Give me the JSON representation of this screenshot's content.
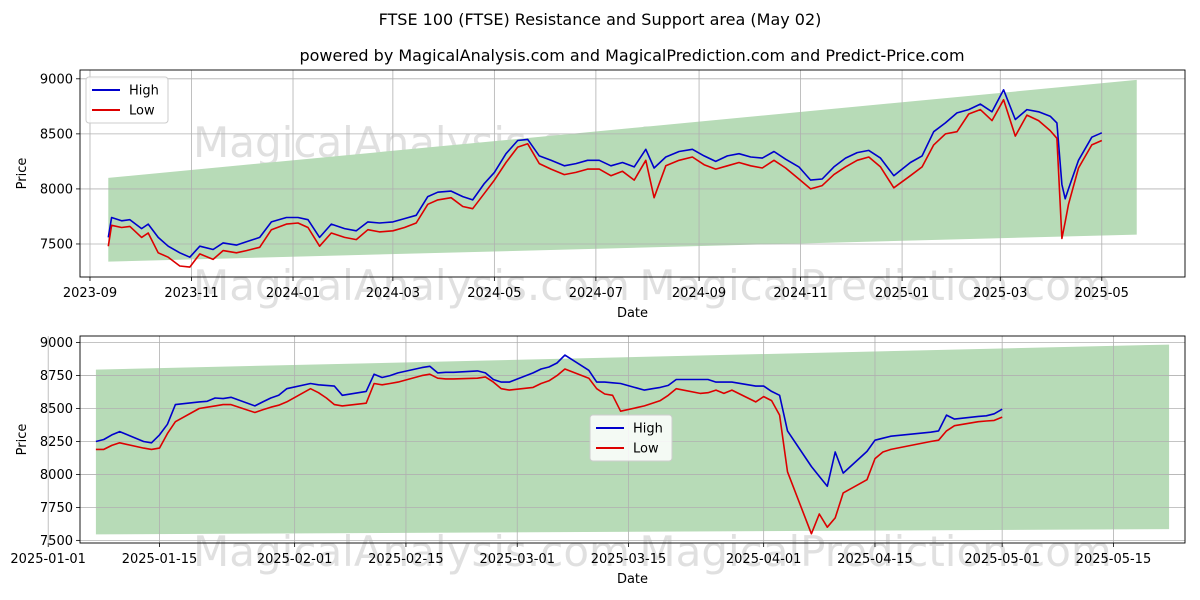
{
  "title": "FTSE 100 (FTSE) Resistance and Support area (May 02)",
  "subtitle": "powered by MagicalAnalysis.com and MagicalPrediction.com and Predict-Price.com",
  "watermarks": [
    "MagicalAnalysis.com",
    "MagicalPrediction.com"
  ],
  "colors": {
    "high": "#0000cc",
    "low": "#dd0000",
    "band": "#b7dbb7",
    "grid": "#b0b0b0"
  },
  "chart_data": [
    {
      "type": "line",
      "xlabel": "Date",
      "ylabel": "Price",
      "xlim": [
        "2023-08-26",
        "2025-06-20"
      ],
      "ylim": [
        7200,
        9080
      ],
      "grid": true,
      "legend": "top-left",
      "x_ticks": [
        "2023-09",
        "2023-11",
        "2024-01",
        "2024-03",
        "2024-05",
        "2024-07",
        "2024-09",
        "2024-11",
        "2025-01",
        "2025-03",
        "2025-05"
      ],
      "y_ticks": [
        7500,
        8000,
        8500,
        9000
      ],
      "band": {
        "x": [
          "2023-09-12",
          "2025-05-22"
        ],
        "upper": [
          8100,
          8990
        ],
        "lower": [
          7340,
          7585
        ]
      },
      "series": [
        {
          "name": "High",
          "x": [
            "2023-09-12",
            "2023-09-14",
            "2023-09-20",
            "2023-09-25",
            "2023-10-02",
            "2023-10-06",
            "2023-10-12",
            "2023-10-18",
            "2023-10-25",
            "2023-10-31",
            "2023-11-06",
            "2023-11-14",
            "2023-11-20",
            "2023-11-28",
            "2023-12-04",
            "2023-12-12",
            "2023-12-19",
            "2023-12-28",
            "2024-01-04",
            "2024-01-10",
            "2024-01-17",
            "2024-01-24",
            "2024-02-01",
            "2024-02-08",
            "2024-02-15",
            "2024-02-22",
            "2024-03-01",
            "2024-03-08",
            "2024-03-15",
            "2024-03-22",
            "2024-03-28",
            "2024-04-05",
            "2024-04-12",
            "2024-04-18",
            "2024-04-25",
            "2024-05-01",
            "2024-05-08",
            "2024-05-15",
            "2024-05-21",
            "2024-05-28",
            "2024-06-04",
            "2024-06-12",
            "2024-06-19",
            "2024-06-26",
            "2024-07-03",
            "2024-07-10",
            "2024-07-17",
            "2024-07-24",
            "2024-07-31",
            "2024-08-05",
            "2024-08-12",
            "2024-08-20",
            "2024-08-28",
            "2024-09-04",
            "2024-09-11",
            "2024-09-18",
            "2024-09-25",
            "2024-10-02",
            "2024-10-09",
            "2024-10-16",
            "2024-10-23",
            "2024-10-31",
            "2024-11-07",
            "2024-11-14",
            "2024-11-21",
            "2024-11-28",
            "2024-12-05",
            "2024-12-12",
            "2024-12-19",
            "2024-12-27",
            "2025-01-06",
            "2025-01-13",
            "2025-01-20",
            "2025-01-27",
            "2025-02-03",
            "2025-02-10",
            "2025-02-17",
            "2025-02-24",
            "2025-03-03",
            "2025-03-10",
            "2025-03-17",
            "2025-03-24",
            "2025-03-31",
            "2025-04-04",
            "2025-04-07",
            "2025-04-09",
            "2025-04-11",
            "2025-04-17",
            "2025-04-25",
            "2025-05-01"
          ],
          "values": [
            7560,
            7740,
            7710,
            7720,
            7640,
            7680,
            7560,
            7480,
            7420,
            7380,
            7480,
            7450,
            7510,
            7490,
            7520,
            7560,
            7700,
            7740,
            7740,
            7720,
            7560,
            7680,
            7640,
            7620,
            7700,
            7690,
            7700,
            7730,
            7760,
            7930,
            7970,
            7980,
            7930,
            7900,
            8050,
            8150,
            8320,
            8440,
            8450,
            8300,
            8260,
            8210,
            8230,
            8260,
            8260,
            8210,
            8240,
            8200,
            8360,
            8190,
            8290,
            8340,
            8360,
            8300,
            8250,
            8300,
            8320,
            8290,
            8280,
            8340,
            8270,
            8200,
            8080,
            8090,
            8200,
            8280,
            8330,
            8350,
            8280,
            8120,
            8240,
            8300,
            8520,
            8600,
            8690,
            8720,
            8770,
            8700,
            8900,
            8630,
            8720,
            8700,
            8660,
            8600,
            8040,
            7910,
            8000,
            8260,
            8470,
            8510
          ]
        },
        {
          "name": "Low",
          "x": [
            "2023-09-12",
            "2023-09-14",
            "2023-09-20",
            "2023-09-25",
            "2023-10-02",
            "2023-10-06",
            "2023-10-12",
            "2023-10-18",
            "2023-10-25",
            "2023-10-31",
            "2023-11-06",
            "2023-11-14",
            "2023-11-20",
            "2023-11-28",
            "2023-12-04",
            "2023-12-12",
            "2023-12-19",
            "2023-12-28",
            "2024-01-04",
            "2024-01-10",
            "2024-01-17",
            "2024-01-24",
            "2024-02-01",
            "2024-02-08",
            "2024-02-15",
            "2024-02-22",
            "2024-03-01",
            "2024-03-08",
            "2024-03-15",
            "2024-03-22",
            "2024-03-28",
            "2024-04-05",
            "2024-04-12",
            "2024-04-18",
            "2024-04-25",
            "2024-05-01",
            "2024-05-08",
            "2024-05-15",
            "2024-05-21",
            "2024-05-28",
            "2024-06-04",
            "2024-06-12",
            "2024-06-19",
            "2024-06-26",
            "2024-07-03",
            "2024-07-10",
            "2024-07-17",
            "2024-07-24",
            "2024-07-31",
            "2024-08-05",
            "2024-08-12",
            "2024-08-20",
            "2024-08-28",
            "2024-09-04",
            "2024-09-11",
            "2024-09-18",
            "2024-09-25",
            "2024-10-02",
            "2024-10-09",
            "2024-10-16",
            "2024-10-23",
            "2024-10-31",
            "2024-11-07",
            "2024-11-14",
            "2024-11-21",
            "2024-11-28",
            "2024-12-05",
            "2024-12-12",
            "2024-12-19",
            "2024-12-27",
            "2025-01-06",
            "2025-01-13",
            "2025-01-20",
            "2025-01-27",
            "2025-02-03",
            "2025-02-10",
            "2025-02-17",
            "2025-02-24",
            "2025-03-03",
            "2025-03-10",
            "2025-03-17",
            "2025-03-24",
            "2025-03-31",
            "2025-04-04",
            "2025-04-07",
            "2025-04-09",
            "2025-04-11",
            "2025-04-17",
            "2025-04-25",
            "2025-05-01"
          ],
          "values": [
            7480,
            7670,
            7650,
            7660,
            7560,
            7600,
            7420,
            7380,
            7300,
            7290,
            7410,
            7360,
            7440,
            7420,
            7440,
            7470,
            7630,
            7680,
            7690,
            7650,
            7480,
            7600,
            7560,
            7540,
            7630,
            7610,
            7620,
            7650,
            7690,
            7860,
            7900,
            7920,
            7840,
            7820,
            7960,
            8080,
            8240,
            8380,
            8410,
            8230,
            8180,
            8130,
            8150,
            8180,
            8180,
            8120,
            8160,
            8080,
            8260,
            7920,
            8210,
            8260,
            8290,
            8220,
            8180,
            8210,
            8240,
            8210,
            8190,
            8260,
            8190,
            8090,
            8000,
            8030,
            8130,
            8200,
            8260,
            8290,
            8200,
            8010,
            8120,
            8200,
            8400,
            8500,
            8520,
            8680,
            8720,
            8620,
            8810,
            8480,
            8670,
            8620,
            8530,
            8460,
            7550,
            7700,
            7860,
            8190,
            8400,
            8440
          ]
        }
      ]
    },
    {
      "type": "line",
      "xlabel": "Date",
      "ylabel": "Price",
      "xlim": [
        "2025-01-05",
        "2025-05-24"
      ],
      "ylim": [
        7480,
        9050
      ],
      "grid": true,
      "legend": "center",
      "x_ticks": [
        "2025-01-01",
        "2025-01-15",
        "2025-02-01",
        "2025-02-15",
        "2025-03-01",
        "2025-03-15",
        "2025-04-01",
        "2025-04-15",
        "2025-05-01",
        "2025-05-15"
      ],
      "y_ticks": [
        7500,
        7750,
        8000,
        8250,
        8500,
        8750,
        9000
      ],
      "band": {
        "x": [
          "2025-01-07",
          "2025-05-22"
        ],
        "upper": [
          8795,
          8985
        ],
        "lower": [
          7545,
          7585
        ]
      },
      "series": [
        {
          "name": "High",
          "x": [
            "2025-01-07",
            "2025-01-08",
            "2025-01-09",
            "2025-01-10",
            "2025-01-13",
            "2025-01-14",
            "2025-01-15",
            "2025-01-16",
            "2025-01-17",
            "2025-01-20",
            "2025-01-21",
            "2025-01-22",
            "2025-01-23",
            "2025-01-24",
            "2025-01-27",
            "2025-01-28",
            "2025-01-29",
            "2025-01-30",
            "2025-01-31",
            "2025-02-03",
            "2025-02-04",
            "2025-02-05",
            "2025-02-06",
            "2025-02-07",
            "2025-02-10",
            "2025-02-11",
            "2025-02-12",
            "2025-02-13",
            "2025-02-14",
            "2025-02-17",
            "2025-02-18",
            "2025-02-19",
            "2025-02-20",
            "2025-02-21",
            "2025-02-24",
            "2025-02-25",
            "2025-02-26",
            "2025-02-27",
            "2025-02-28",
            "2025-03-03",
            "2025-03-04",
            "2025-03-05",
            "2025-03-06",
            "2025-03-07",
            "2025-03-10",
            "2025-03-11",
            "2025-03-12",
            "2025-03-13",
            "2025-03-14",
            "2025-03-17",
            "2025-03-18",
            "2025-03-19",
            "2025-03-20",
            "2025-03-21",
            "2025-03-24",
            "2025-03-25",
            "2025-03-26",
            "2025-03-27",
            "2025-03-28",
            "2025-03-31",
            "2025-04-01",
            "2025-04-02",
            "2025-04-03",
            "2025-04-04",
            "2025-04-07",
            "2025-04-08",
            "2025-04-09",
            "2025-04-10",
            "2025-04-11",
            "2025-04-14",
            "2025-04-15",
            "2025-04-16",
            "2025-04-17",
            "2025-04-22",
            "2025-04-23",
            "2025-04-24",
            "2025-04-25",
            "2025-04-28",
            "2025-04-29",
            "2025-04-30",
            "2025-05-01"
          ],
          "values": [
            8250,
            8265,
            8300,
            8325,
            8250,
            8240,
            8300,
            8380,
            8530,
            8550,
            8555,
            8580,
            8575,
            8585,
            8520,
            8550,
            8580,
            8600,
            8650,
            8690,
            8680,
            8675,
            8670,
            8600,
            8630,
            8760,
            8735,
            8750,
            8770,
            8810,
            8820,
            8770,
            8775,
            8775,
            8785,
            8770,
            8720,
            8700,
            8700,
            8770,
            8800,
            8815,
            8845,
            8905,
            8790,
            8700,
            8700,
            8695,
            8690,
            8640,
            8650,
            8660,
            8675,
            8720,
            8720,
            8720,
            8700,
            8700,
            8700,
            8670,
            8670,
            8630,
            8600,
            8330,
            8060,
            7985,
            7910,
            8170,
            8010,
            8175,
            8260,
            8275,
            8290,
            8320,
            8330,
            8450,
            8420,
            8440,
            8445,
            8460,
            8495
          ]
        },
        {
          "name": "Low",
          "x": [
            "2025-01-07",
            "2025-01-08",
            "2025-01-09",
            "2025-01-10",
            "2025-01-13",
            "2025-01-14",
            "2025-01-15",
            "2025-01-16",
            "2025-01-17",
            "2025-01-20",
            "2025-01-21",
            "2025-01-22",
            "2025-01-23",
            "2025-01-24",
            "2025-01-27",
            "2025-01-28",
            "2025-01-29",
            "2025-01-30",
            "2025-01-31",
            "2025-02-03",
            "2025-02-04",
            "2025-02-05",
            "2025-02-06",
            "2025-02-07",
            "2025-02-10",
            "2025-02-11",
            "2025-02-12",
            "2025-02-13",
            "2025-02-14",
            "2025-02-17",
            "2025-02-18",
            "2025-02-19",
            "2025-02-20",
            "2025-02-21",
            "2025-02-24",
            "2025-02-25",
            "2025-02-26",
            "2025-02-27",
            "2025-02-28",
            "2025-03-03",
            "2025-03-04",
            "2025-03-05",
            "2025-03-06",
            "2025-03-07",
            "2025-03-10",
            "2025-03-11",
            "2025-03-12",
            "2025-03-13",
            "2025-03-14",
            "2025-03-17",
            "2025-03-18",
            "2025-03-19",
            "2025-03-20",
            "2025-03-21",
            "2025-03-24",
            "2025-03-25",
            "2025-03-26",
            "2025-03-27",
            "2025-03-28",
            "2025-03-31",
            "2025-04-01",
            "2025-04-02",
            "2025-04-03",
            "2025-04-04",
            "2025-04-07",
            "2025-04-08",
            "2025-04-09",
            "2025-04-10",
            "2025-04-11",
            "2025-04-14",
            "2025-04-15",
            "2025-04-16",
            "2025-04-17",
            "2025-04-22",
            "2025-04-23",
            "2025-04-24",
            "2025-04-25",
            "2025-04-28",
            "2025-04-29",
            "2025-04-30",
            "2025-05-01"
          ],
          "values": [
            8190,
            8190,
            8220,
            8240,
            8200,
            8190,
            8200,
            8310,
            8400,
            8500,
            8510,
            8520,
            8530,
            8530,
            8470,
            8490,
            8510,
            8525,
            8550,
            8650,
            8620,
            8580,
            8530,
            8520,
            8540,
            8690,
            8680,
            8690,
            8700,
            8750,
            8760,
            8730,
            8725,
            8725,
            8730,
            8740,
            8700,
            8650,
            8640,
            8660,
            8690,
            8710,
            8750,
            8800,
            8730,
            8650,
            8610,
            8600,
            8480,
            8520,
            8540,
            8560,
            8600,
            8650,
            8615,
            8620,
            8640,
            8615,
            8640,
            8550,
            8590,
            8560,
            8450,
            8020,
            7550,
            7700,
            7600,
            7670,
            7860,
            7960,
            8120,
            8170,
            8190,
            8250,
            8260,
            8330,
            8370,
            8400,
            8405,
            8410,
            8435
          ]
        }
      ]
    }
  ]
}
